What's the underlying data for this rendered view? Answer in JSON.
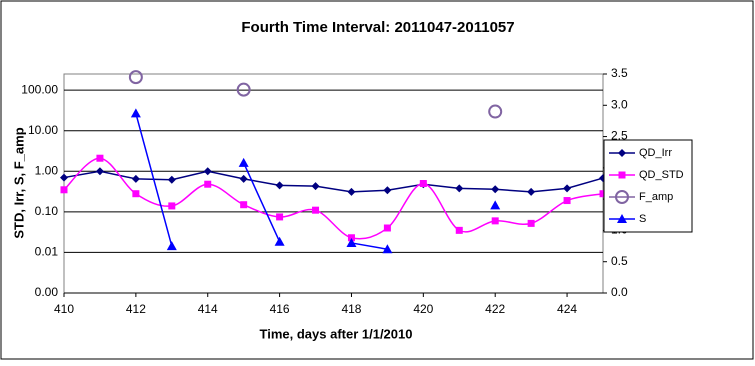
{
  "chart_data": {
    "type": "line",
    "title": "Fourth Time Interval: 2011047-2011057",
    "x_label": "Time, days after 1/1/2010",
    "y_label": "STD, Irr, S, F_amp",
    "x": [
      410,
      411,
      412,
      413,
      414,
      415,
      416,
      417,
      418,
      419,
      420,
      421,
      422,
      423,
      424,
      425
    ],
    "xlim": [
      410,
      425
    ],
    "xticks": [
      410,
      412,
      414,
      416,
      418,
      420,
      422,
      424
    ],
    "ylim": [
      0.001,
      250
    ],
    "ylog": true,
    "yticks": [
      {
        "value": 0.001,
        "label": "0.00"
      },
      0.01,
      {
        "value": 0.1,
        "label": "0.10"
      },
      {
        "value": 1,
        "label": "1.00"
      },
      {
        "value": 10,
        "label": "10.00"
      },
      {
        "value": 100,
        "label": "100.00"
      }
    ],
    "y2lim": [
      0,
      3.5
    ],
    "y2ticks": [
      {
        "value": 0,
        "label": "0.0"
      },
      0.5,
      {
        "value": 1,
        "label": "1.0"
      },
      1.5,
      {
        "value": 2,
        "label": "2.0"
      },
      2.5,
      {
        "value": 3,
        "label": "3.0"
      },
      3.5
    ],
    "grid": true,
    "legend": "right",
    "series": [
      {
        "name": "QD_Irr",
        "color": "#000080",
        "marker": "diamond",
        "line": true,
        "smooth": false,
        "values": [
          0.7,
          1.0,
          0.65,
          0.62,
          1.0,
          0.65,
          0.45,
          0.43,
          0.31,
          0.34,
          0.48,
          0.38,
          0.36,
          0.31,
          0.38,
          0.68
        ]
      },
      {
        "name": "QD_STD",
        "color": "#ff00ff",
        "marker": "square",
        "line": true,
        "smooth": true,
        "values": [
          0.35,
          2.1,
          0.28,
          0.14,
          0.48,
          0.15,
          0.075,
          0.11,
          0.023,
          0.04,
          0.5,
          0.035,
          0.06,
          0.052,
          0.19,
          0.28
        ]
      },
      {
        "name": "F_amp",
        "color": "#8064a2",
        "marker": "circle",
        "line": false,
        "smooth": false,
        "axis": "y2",
        "values": [
          null,
          null,
          3.45,
          null,
          null,
          3.25,
          null,
          null,
          null,
          null,
          null,
          null,
          2.9,
          null,
          null,
          null
        ]
      },
      {
        "name": "S",
        "color": "#0000ff",
        "marker": "triangle",
        "line": true,
        "smooth": false,
        "axis": "y2",
        "values": [
          null,
          null,
          2.87,
          0.75,
          null,
          2.08,
          0.82,
          null,
          0.8,
          0.7,
          null,
          null,
          1.4,
          null,
          null,
          null
        ]
      }
    ]
  }
}
